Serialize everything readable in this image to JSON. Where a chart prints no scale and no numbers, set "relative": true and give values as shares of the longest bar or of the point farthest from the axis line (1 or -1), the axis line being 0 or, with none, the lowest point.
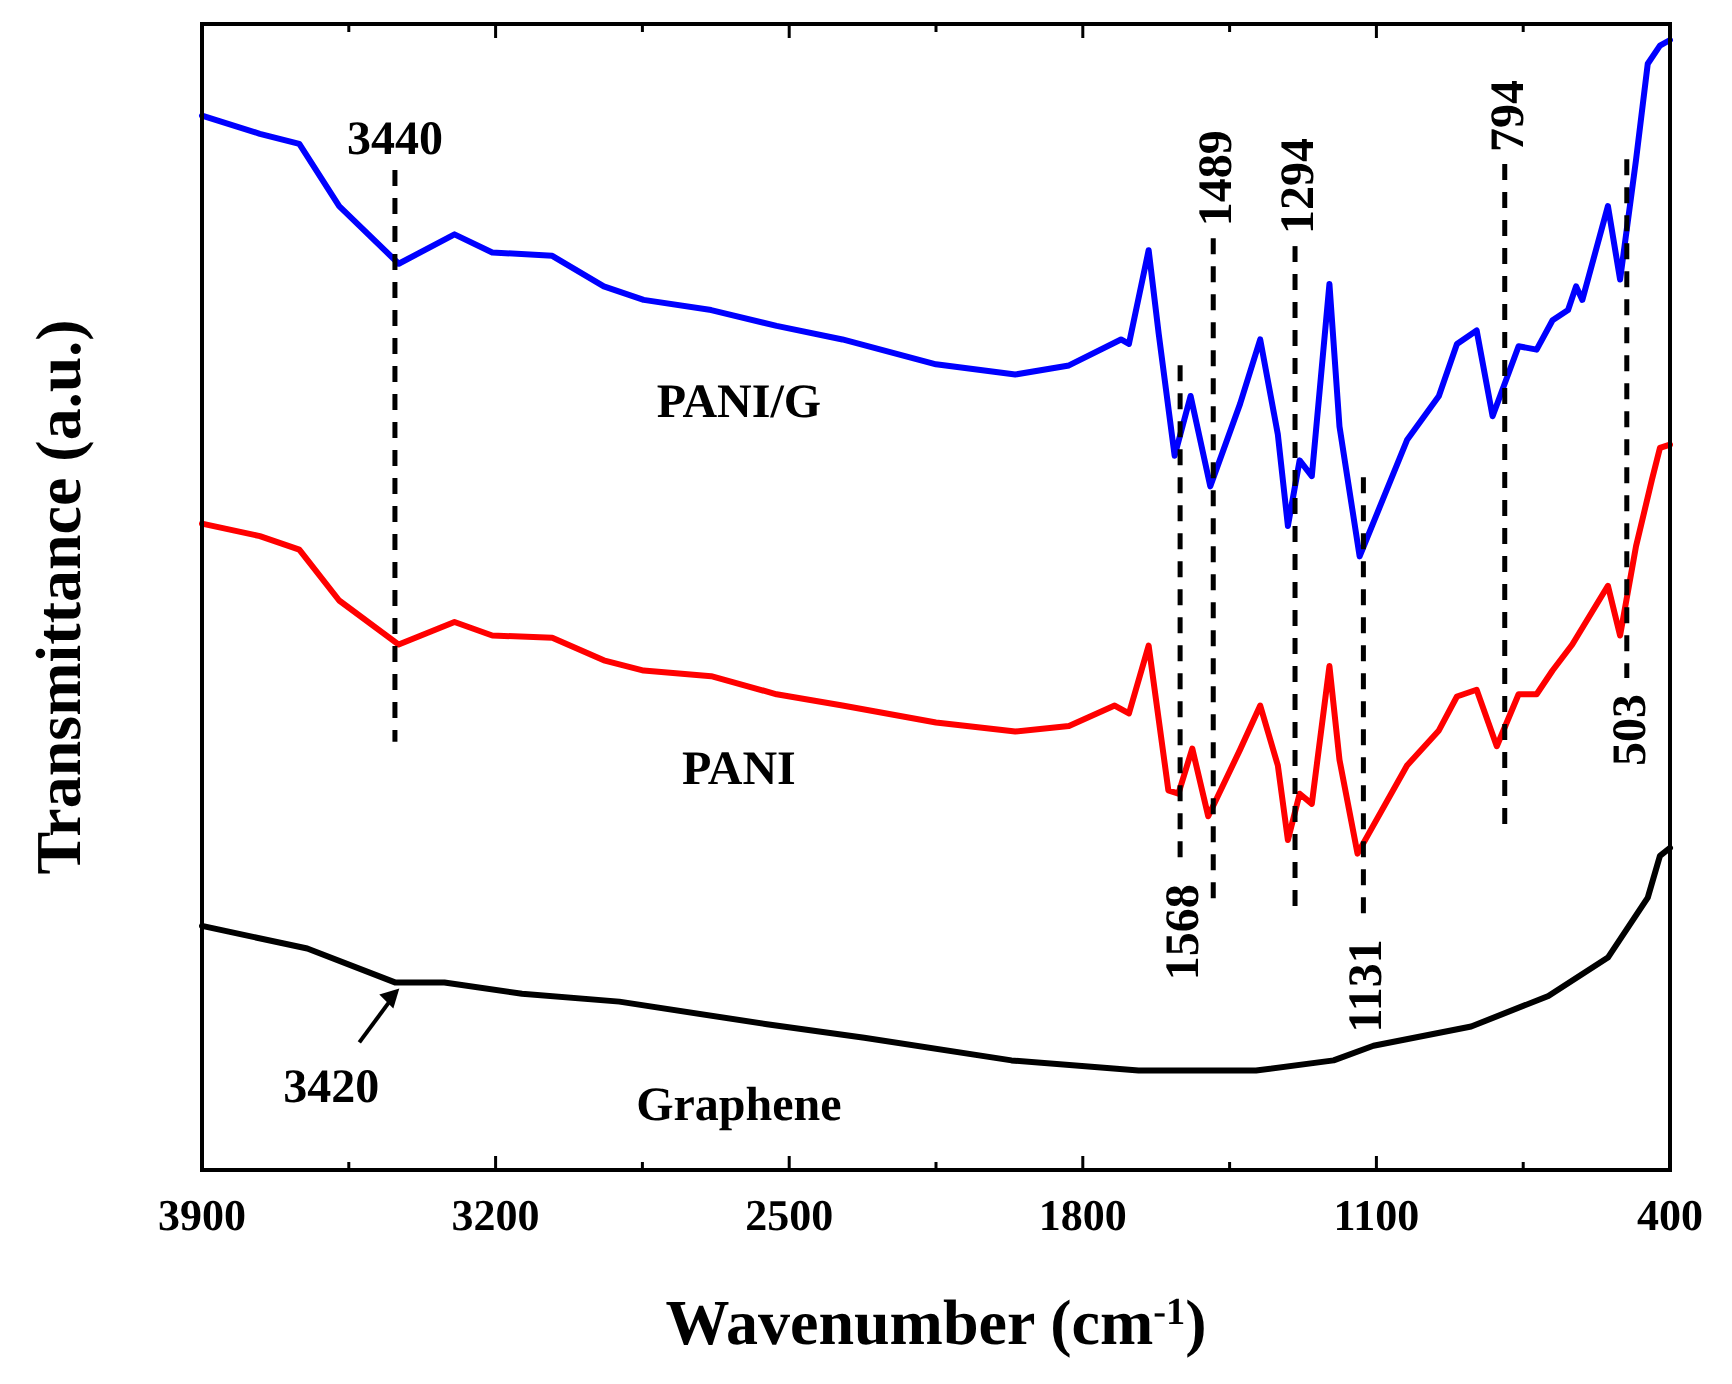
{
  "chart_data": {
    "type": "line",
    "relative": true,
    "xlabel": "Wavenumber (cm$^{-1}$)",
    "ylabel": "Transmittance (a.u.)",
    "xlim": [
      3900,
      400
    ],
    "xticks": [
      3900,
      {
        "value": 3550,
        "label": null
      },
      3200,
      {
        "value": 2850,
        "label": null
      },
      2500,
      {
        "value": 2150,
        "label": null
      },
      1800,
      {
        "value": 1450,
        "label": null
      },
      1100,
      {
        "value": 750,
        "label": null
      },
      400
    ],
    "grid": false,
    "marker": "none",
    "line_style": "solid",
    "series": [
      {
        "name": "PANI/G",
        "color": "#0000ff",
        "x": [
          3900,
          3762,
          3668,
          3573,
          3431,
          3298,
          3208,
          3065,
          2942,
          2847,
          2686,
          2530,
          2373,
          2150,
          1961,
          1833,
          1709,
          1690,
          1643,
          1619,
          1581,
          1543,
          1496,
          1425,
          1377,
          1335,
          1311,
          1283,
          1254,
          1212,
          1188,
          1140,
          1027,
          951,
          908,
          861,
          823,
          761,
          718,
          680,
          643,
          624,
          609,
          548,
          519,
          481,
          453,
          424,
          400
        ],
        "values": [
          0.933,
          0.917,
          0.908,
          0.853,
          0.802,
          0.828,
          0.812,
          0.809,
          0.782,
          0.77,
          0.761,
          0.747,
          0.735,
          0.713,
          0.704,
          0.712,
          0.735,
          0.731,
          0.814,
          0.74,
          0.632,
          0.685,
          0.605,
          0.678,
          0.735,
          0.651,
          0.57,
          0.628,
          0.614,
          0.784,
          0.658,
          0.543,
          0.646,
          0.685,
          0.731,
          0.743,
          0.667,
          0.729,
          0.726,
          0.752,
          0.761,
          0.782,
          0.77,
          0.853,
          0.788,
          0.894,
          0.979,
          0.995,
          1
        ]
      },
      {
        "name": "PANI",
        "color": "#ff0000",
        "x": [
          3900,
          3762,
          3668,
          3573,
          3431,
          3298,
          3208,
          3065,
          2942,
          2847,
          2686,
          2530,
          2373,
          2150,
          1961,
          1833,
          1724,
          1690,
          1643,
          1596,
          1572,
          1539,
          1501,
          1425,
          1377,
          1335,
          1311,
          1283,
          1254,
          1212,
          1188,
          1145,
          1027,
          951,
          908,
          861,
          813,
          761,
          718,
          680,
          633,
          548,
          519,
          481,
          443,
          424,
          400
        ],
        "values": [
          0.572,
          0.561,
          0.549,
          0.504,
          0.465,
          0.485,
          0.473,
          0.471,
          0.451,
          0.442,
          0.437,
          0.421,
          0.411,
          0.396,
          0.388,
          0.393,
          0.411,
          0.404,
          0.464,
          0.336,
          0.333,
          0.373,
          0.313,
          0.372,
          0.411,
          0.358,
          0.292,
          0.333,
          0.324,
          0.446,
          0.363,
          0.28,
          0.358,
          0.389,
          0.419,
          0.425,
          0.375,
          0.421,
          0.421,
          0.442,
          0.465,
          0.517,
          0.473,
          0.552,
          0.611,
          0.639,
          0.642
        ]
      },
      {
        "name": "Graphene",
        "color": "#000000",
        "x": [
          3900,
          3649,
          3440,
          3322,
          3137,
          2905,
          2553,
          2321,
          1970,
          1667,
          1387,
          1202,
          1107,
          874,
          690,
          548,
          453,
          424,
          400
        ],
        "values": [
          0.216,
          0.196,
          0.166,
          0.166,
          0.156,
          0.149,
          0.129,
          0.117,
          0.097,
          0.088,
          0.088,
          0.097,
          0.11,
          0.127,
          0.154,
          0.188,
          0.241,
          0.278,
          0.285
        ]
      }
    ],
    "ref_lines": [
      {
        "axis": "x",
        "value": 3440,
        "label": "3440",
        "color": "#000000",
        "line_style": "dashed"
      },
      {
        "axis": "x",
        "value": 1489,
        "label": "1489",
        "color": "#000000",
        "line_style": "dashed"
      },
      {
        "axis": "x",
        "value": 1294,
        "label": "1294",
        "color": "#000000",
        "line_style": "dashed"
      },
      {
        "axis": "x",
        "value": 794,
        "label": "794",
        "color": "#000000",
        "line_style": "dashed"
      },
      {
        "axis": "x",
        "value": 1568,
        "label": "1568",
        "color": "#000000",
        "line_style": "dashed"
      },
      {
        "axis": "x",
        "value": 1131,
        "label": "1131",
        "color": "#000000",
        "line_style": "dashed"
      },
      {
        "axis": "x",
        "value": 503,
        "label": "503",
        "color": "#000000",
        "line_style": "dashed"
      }
    ],
    "annotations": [
      {
        "text": "3420",
        "x": 3420,
        "y": 0.166
      }
    ]
  }
}
